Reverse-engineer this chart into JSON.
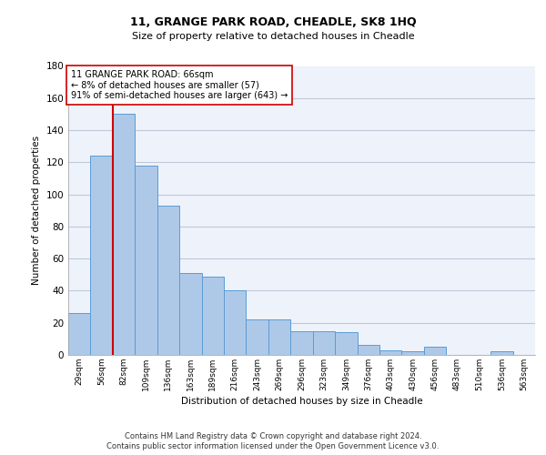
{
  "title1": "11, GRANGE PARK ROAD, CHEADLE, SK8 1HQ",
  "title2": "Size of property relative to detached houses in Cheadle",
  "xlabel": "Distribution of detached houses by size in Cheadle",
  "ylabel": "Number of detached properties",
  "categories": [
    "29sqm",
    "56sqm",
    "82sqm",
    "109sqm",
    "136sqm",
    "163sqm",
    "189sqm",
    "216sqm",
    "243sqm",
    "269sqm",
    "296sqm",
    "323sqm",
    "349sqm",
    "376sqm",
    "403sqm",
    "430sqm",
    "456sqm",
    "483sqm",
    "510sqm",
    "536sqm",
    "563sqm"
  ],
  "values": [
    26,
    124,
    150,
    118,
    93,
    51,
    49,
    40,
    22,
    22,
    15,
    15,
    14,
    6,
    3,
    2,
    5,
    0,
    0,
    2,
    0
  ],
  "bar_color": "#aec9e8",
  "bar_edge_color": "#5b9bd5",
  "ylim": [
    0,
    180
  ],
  "yticks": [
    0,
    20,
    40,
    60,
    80,
    100,
    120,
    140,
    160,
    180
  ],
  "vline_x": 1.5,
  "vline_color": "#cc0000",
  "annotation_text": "11 GRANGE PARK ROAD: 66sqm\n← 8% of detached houses are smaller (57)\n91% of semi-detached houses are larger (643) →",
  "footer1": "Contains HM Land Registry data © Crown copyright and database right 2024.",
  "footer2": "Contains public sector information licensed under the Open Government Licence v3.0.",
  "plot_bg_color": "#eef2fa",
  "grid_color": "#c0c8d8"
}
